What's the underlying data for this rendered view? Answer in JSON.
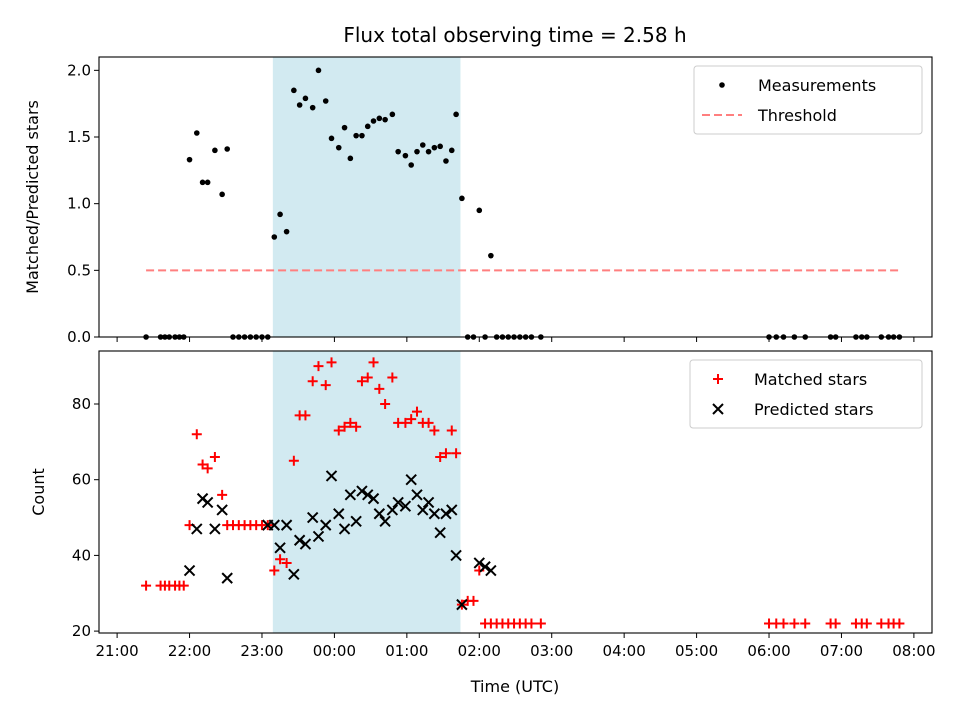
{
  "chart_data": {
    "type": "scatter",
    "title": "Flux total observing time = 2.58 h",
    "xlabel": "Time (UTC)",
    "x_units": "hours since 21:00",
    "x_range": [
      -0.25,
      11.25
    ],
    "x_ticks": [
      {
        "x": 0,
        "label": "21:00"
      },
      {
        "x": 1,
        "label": "22:00"
      },
      {
        "x": 2,
        "label": "23:00"
      },
      {
        "x": 3,
        "label": "00:00"
      },
      {
        "x": 4,
        "label": "01:00"
      },
      {
        "x": 5,
        "label": "02:00"
      },
      {
        "x": 6,
        "label": "03:00"
      },
      {
        "x": 7,
        "label": "04:00"
      },
      {
        "x": 8,
        "label": "05:00"
      },
      {
        "x": 9,
        "label": "06:00"
      },
      {
        "x": 10,
        "label": "07:00"
      },
      {
        "x": 11,
        "label": "08:00"
      }
    ],
    "observing_window": {
      "start": 2.15,
      "end": 4.74,
      "color": "#add8e6"
    },
    "panels": [
      {
        "ylabel": "Matched/Predicted stars",
        "ylim": [
          0,
          2.1
        ],
        "y_ticks": [
          "0.0",
          "0.5",
          "1.0",
          "1.5",
          "2.0"
        ],
        "legend_position": "top-right",
        "series": [
          {
            "name": "Measurements",
            "marker": "dot",
            "color": "#000000",
            "x": [
              0.4,
              0.6,
              0.66,
              0.72,
              0.8,
              0.86,
              0.92,
              1.0,
              1.1,
              1.18,
              1.25,
              1.35,
              1.45,
              1.52,
              1.6,
              1.68,
              1.76,
              1.84,
              1.92,
              2.0,
              2.08,
              2.17,
              2.25,
              2.34,
              2.44,
              2.52,
              2.6,
              2.7,
              2.78,
              2.88,
              2.96,
              3.06,
              3.14,
              3.22,
              3.3,
              3.38,
              3.46,
              3.54,
              3.62,
              3.7,
              3.8,
              3.88,
              3.98,
              4.06,
              4.14,
              4.22,
              4.3,
              4.38,
              4.46,
              4.54,
              4.62,
              4.68,
              4.76,
              4.84,
              4.92,
              5.0,
              5.08,
              5.16,
              5.24,
              5.32,
              5.4,
              5.48,
              5.56,
              5.64,
              5.72,
              5.85,
              9.0,
              9.1,
              9.2,
              9.35,
              9.5,
              9.85,
              9.92,
              10.2,
              10.28,
              10.35,
              10.55,
              10.65,
              10.72,
              10.8
            ],
            "y": [
              0,
              0,
              0,
              0,
              0,
              0,
              0,
              1.33,
              1.53,
              1.16,
              1.16,
              1.4,
              1.07,
              1.41,
              0,
              0,
              0,
              0,
              0,
              0,
              0,
              0.75,
              0.92,
              0.79,
              1.85,
              1.74,
              1.79,
              1.72,
              2.0,
              1.77,
              1.49,
              1.42,
              1.57,
              1.34,
              1.51,
              1.51,
              1.58,
              1.62,
              1.64,
              1.63,
              1.67,
              1.39,
              1.36,
              1.29,
              1.39,
              1.44,
              1.39,
              1.42,
              1.43,
              1.32,
              1.4,
              1.67,
              1.04,
              0,
              0,
              0.95,
              0,
              0.61,
              0,
              0,
              0,
              0,
              0,
              0,
              0,
              0,
              0,
              0,
              0,
              0,
              0,
              0,
              0,
              0,
              0,
              0,
              0,
              0,
              0,
              0
            ]
          },
          {
            "name": "Threshold",
            "marker": "dashed-line",
            "color": "#ff7f7f",
            "x": [
              0.4,
              10.8
            ],
            "y": [
              0.5,
              0.5
            ]
          }
        ]
      },
      {
        "ylabel": "Count",
        "ylim": [
          19.5,
          94
        ],
        "y_ticks": [
          "20",
          "40",
          "60",
          "80"
        ],
        "legend_position": "top-right",
        "series": [
          {
            "name": "Matched stars",
            "marker": "plus",
            "color": "#ff0000",
            "x": [
              0.4,
              0.6,
              0.66,
              0.72,
              0.8,
              0.86,
              0.92,
              1.0,
              1.1,
              1.18,
              1.25,
              1.35,
              1.45,
              1.52,
              1.6,
              1.68,
              1.76,
              1.84,
              1.92,
              2.0,
              2.08,
              2.17,
              2.25,
              2.34,
              2.44,
              2.52,
              2.6,
              2.7,
              2.78,
              2.88,
              2.96,
              3.06,
              3.14,
              3.22,
              3.3,
              3.38,
              3.46,
              3.54,
              3.62,
              3.7,
              3.8,
              3.88,
              3.98,
              4.06,
              4.14,
              4.22,
              4.3,
              4.38,
              4.46,
              4.54,
              4.62,
              4.68,
              4.76,
              4.84,
              4.92,
              5.0,
              5.08,
              5.16,
              5.24,
              5.32,
              5.4,
              5.48,
              5.56,
              5.64,
              5.72,
              5.85,
              9.0,
              9.1,
              9.2,
              9.35,
              9.5,
              9.85,
              9.92,
              10.2,
              10.28,
              10.35,
              10.55,
              10.65,
              10.72,
              10.8
            ],
            "y": [
              32,
              32,
              32,
              32,
              32,
              32,
              32,
              48,
              72,
              64,
              63,
              66,
              56,
              48,
              48,
              48,
              48,
              48,
              48,
              48,
              48,
              36,
              39,
              38,
              65,
              77,
              77,
              86,
              90,
              85,
              91,
              73,
              74,
              75,
              74,
              86,
              87,
              91,
              84,
              80,
              87,
              75,
              75,
              76,
              78,
              75,
              75,
              73,
              66,
              67,
              73,
              67,
              27,
              28,
              28,
              36,
              22,
              22,
              22,
              22,
              22,
              22,
              22,
              22,
              22,
              22,
              22,
              22,
              22,
              22,
              22,
              22,
              22,
              22,
              22,
              22,
              22,
              22,
              22,
              22
            ]
          },
          {
            "name": "Predicted stars",
            "marker": "x",
            "color": "#000000",
            "x": [
              1.0,
              1.1,
              1.18,
              1.25,
              1.35,
              1.45,
              1.52,
              2.08,
              2.17,
              2.25,
              2.34,
              2.44,
              2.52,
              2.6,
              2.7,
              2.78,
              2.88,
              2.96,
              3.06,
              3.14,
              3.22,
              3.3,
              3.38,
              3.46,
              3.54,
              3.62,
              3.7,
              3.8,
              3.88,
              3.98,
              4.06,
              4.14,
              4.22,
              4.3,
              4.38,
              4.46,
              4.54,
              4.62,
              4.68,
              4.76,
              5.0,
              5.08,
              5.16
            ],
            "y": [
              36,
              47,
              55,
              54,
              47,
              52,
              34,
              48,
              48,
              42,
              48,
              35,
              44,
              43,
              50,
              45,
              48,
              61,
              51,
              47,
              56,
              49,
              57,
              56,
              55,
              51,
              49,
              52,
              54,
              53,
              60,
              56,
              52,
              54,
              51,
              46,
              51,
              52,
              40,
              27,
              38,
              37,
              36
            ]
          }
        ]
      }
    ]
  }
}
